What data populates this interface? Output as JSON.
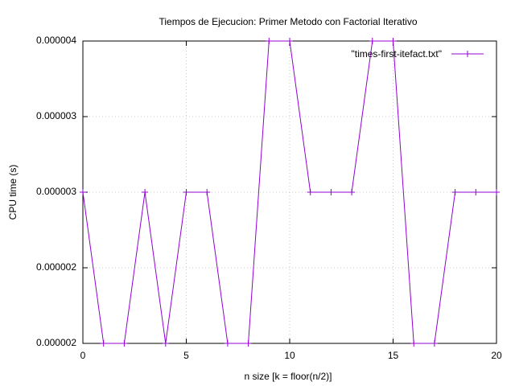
{
  "chart_data": {
    "type": "line",
    "title": "Tiempos de Ejecucion: Primer Metodo con Factorial Iterativo",
    "xlabel": "n size [k = floor(n/2)]",
    "ylabel": "CPU time (s)",
    "xlim": [
      0,
      20
    ],
    "ylim": [
      2e-06,
      4e-06
    ],
    "x_ticks": [
      0,
      5,
      10,
      15,
      20
    ],
    "x_tick_labels": [
      "0",
      "5",
      "10",
      "15",
      "20"
    ],
    "y_ticks": [
      2e-06,
      2.5e-06,
      3e-06,
      3.5e-06,
      4e-06
    ],
    "y_tick_labels": [
      "0.000002",
      "0.000002",
      "0.000003",
      "0.000003",
      "0.000004"
    ],
    "grid": true,
    "legend_position": "top-right",
    "series": [
      {
        "name": "\"times-first-itefact.txt\"",
        "color": "#9400d3",
        "marker": "plus",
        "x": [
          0,
          1,
          2,
          3,
          4,
          5,
          6,
          7,
          8,
          9,
          10,
          11,
          12,
          13,
          14,
          15,
          16,
          17,
          18,
          19,
          20
        ],
        "y": [
          3e-06,
          2e-06,
          2e-06,
          3e-06,
          2e-06,
          3e-06,
          3e-06,
          2e-06,
          2e-06,
          4e-06,
          4e-06,
          3e-06,
          3e-06,
          3e-06,
          4e-06,
          4e-06,
          2e-06,
          2e-06,
          3e-06,
          3e-06,
          3e-06
        ]
      }
    ]
  }
}
